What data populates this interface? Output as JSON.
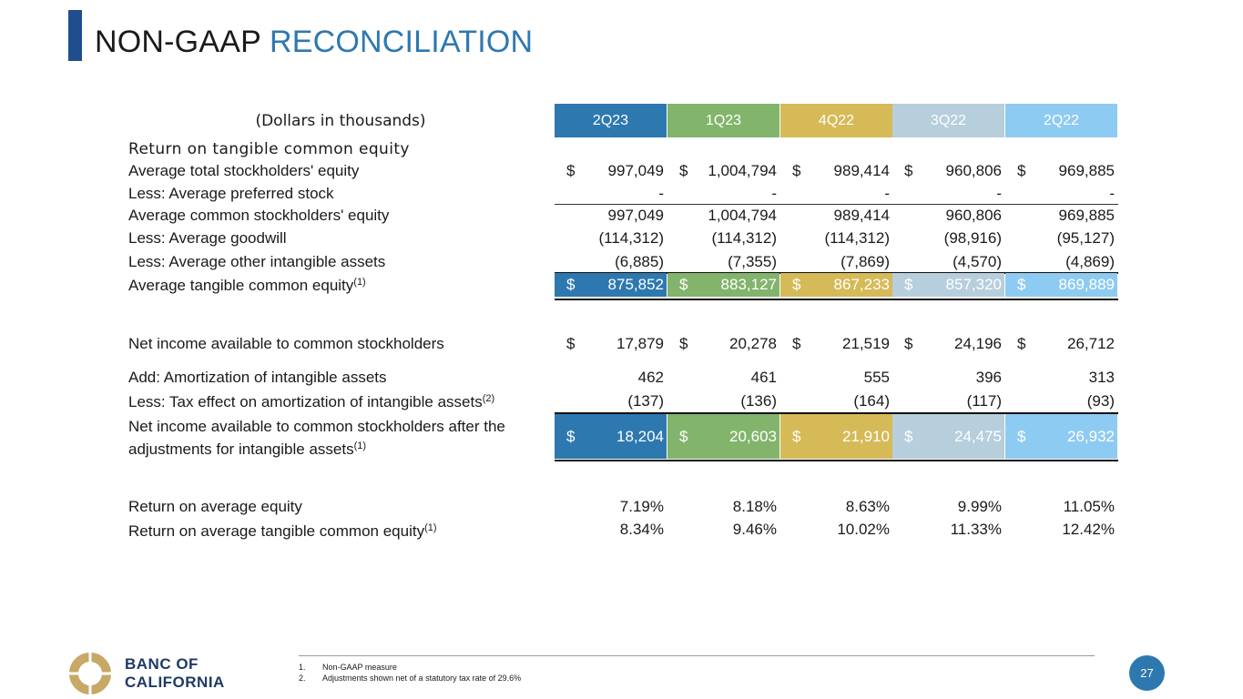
{
  "title": {
    "part1": "NON-GAAP",
    "part2": "RECONCILIATION"
  },
  "units_label": "(Dollars in thousands)",
  "columns": [
    "2Q23",
    "1Q23",
    "4Q22",
    "3Q22",
    "2Q22"
  ],
  "column_colors": [
    "#2e78b0",
    "#82b46b",
    "#d5ba57",
    "#b7cedd",
    "#8ecbf2"
  ],
  "section1": {
    "heading": "Return on tangible common equity",
    "rows": [
      {
        "label": "Average total stockholders' equity",
        "dollar": "$",
        "values": [
          "997,049",
          "1,004,794",
          "989,414",
          "960,806",
          "969,885"
        ]
      },
      {
        "label": "Less: Average preferred stock",
        "values": [
          "-",
          "-",
          "-",
          "-",
          "-"
        ]
      },
      {
        "label": "Average common stockholders' equity",
        "values": [
          "997,049",
          "1,004,794",
          "989,414",
          "960,806",
          "969,885"
        ]
      },
      {
        "label": "Less: Average goodwill",
        "values": [
          "(114,312)",
          "(114,312)",
          "(114,312)",
          "(98,916)",
          "(95,127)"
        ]
      },
      {
        "label": "Less: Average other intangible assets",
        "values": [
          "(6,885)",
          "(7,355)",
          "(7,869)",
          "(4,570)",
          "(4,869)"
        ]
      }
    ],
    "total": {
      "label": "Average tangible common equity",
      "sup": "(1)",
      "dollar": "$",
      "values": [
        "875,852",
        "883,127",
        "867,233",
        "857,320",
        "869,889"
      ]
    }
  },
  "section2": {
    "rows": [
      {
        "label": "Net income available to common stockholders",
        "dollar": "$",
        "values": [
          "17,879",
          "20,278",
          "21,519",
          "24,196",
          "26,712"
        ]
      },
      {
        "label": "Add: Amortization of intangible assets",
        "values": [
          "462",
          "461",
          "555",
          "396",
          "313"
        ]
      },
      {
        "label": "Less: Tax effect on amortization of intangible assets",
        "sup": "(2)",
        "values": [
          "(137)",
          "(136)",
          "(164)",
          "(117)",
          "(93)"
        ]
      }
    ],
    "total": {
      "label_line1": "Net income available to common stockholders after the",
      "label_line2": "adjustments for intangible assets",
      "sup": "(1)",
      "dollar": "$",
      "values": [
        "18,204",
        "20,603",
        "21,910",
        "24,475",
        "26,932"
      ]
    }
  },
  "section3": {
    "rows": [
      {
        "label": "Return on average equity",
        "values": [
          "7.19%",
          "8.18%",
          "8.63%",
          "9.99%",
          "11.05%"
        ]
      },
      {
        "label": "Return on average tangible common equity",
        "sup": "(1)",
        "values": [
          "8.34%",
          "9.46%",
          "10.02%",
          "11.33%",
          "12.42%"
        ]
      }
    ]
  },
  "footnotes": [
    {
      "num": "1.",
      "text": "Non-GAAP measure"
    },
    {
      "num": "2.",
      "text": "Adjustments shown net of a statutory tax rate of 29.6%"
    }
  ],
  "logo": {
    "line1": "BANC OF",
    "line2": "CALIFORNIA"
  },
  "page_number": "27"
}
